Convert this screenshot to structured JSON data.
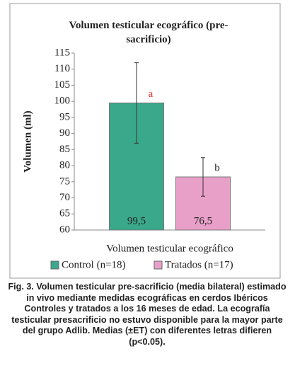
{
  "chart_data": {
    "type": "bar",
    "title": "Volumen testicular ecográfico (pre-sacrificio)",
    "x_label": "Volumen testicular ecográfico",
    "y_label": "Volumen (ml)",
    "categories": [
      null
    ],
    "series": [
      {
        "name": "Control (n=18)",
        "color": "#3aa88a",
        "values": [
          99.5
        ],
        "value_labels": [
          "99,5"
        ],
        "errors": [
          12.5
        ],
        "annotation": "a",
        "annotation_color": "#e03030"
      },
      {
        "name": "Tratados (n=17)",
        "color": "#e8a0c8",
        "values": [
          76.5
        ],
        "value_labels": [
          "76,5"
        ],
        "errors": [
          6
        ],
        "annotation": "b",
        "annotation_color": "#222222"
      }
    ],
    "ylim": [
      60,
      115
    ],
    "yticks": [
      60,
      65,
      70,
      75,
      80,
      85,
      90,
      95,
      100,
      105,
      110,
      115
    ],
    "grid": false,
    "legend": "bottom",
    "caption": "Fig. 3. Volumen testicular pre-sacrificio (media bilateral) estimado in vivo mediante medidas ecográficas en cerdos Ibéricos Controles y tratados a los 16 meses de edad. La ecografía testicular presacrificio no estuvo disponible para la mayor parte del grupo Adlib. Medias (±ET) con diferentes letras difieren (p<0.05)."
  }
}
